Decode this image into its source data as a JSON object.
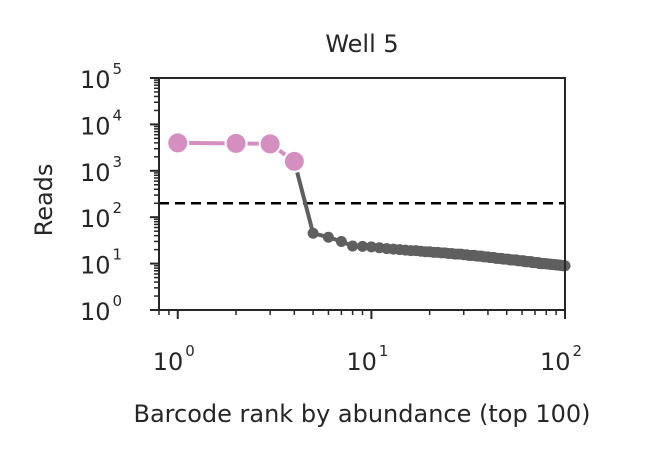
{
  "chart_data": {
    "type": "line",
    "title": "Well 5",
    "xlabel": "Barcode rank by abundance (top 100)",
    "ylabel": "Reads",
    "xscale": "log",
    "yscale": "log",
    "xlim": [
      0.8,
      100
    ],
    "ylim": [
      1,
      100000
    ],
    "x_ticks": [
      {
        "base": "10",
        "exp": "0",
        "value": 1
      },
      {
        "base": "10",
        "exp": "1",
        "value": 10
      },
      {
        "base": "10",
        "exp": "2",
        "value": 100
      }
    ],
    "y_ticks": [
      {
        "base": "10",
        "exp": "0",
        "value": 1
      },
      {
        "base": "10",
        "exp": "1",
        "value": 10
      },
      {
        "base": "10",
        "exp": "2",
        "value": 100
      },
      {
        "base": "10",
        "exp": "3",
        "value": 1000
      },
      {
        "base": "10",
        "exp": "4",
        "value": 10000
      },
      {
        "base": "10",
        "exp": "5",
        "value": 100000
      }
    ],
    "threshold": {
      "y": 200,
      "style": "dashed",
      "color": "#000000"
    },
    "grid": false,
    "series": [
      {
        "role": "selected",
        "color": "#d48fc0",
        "x": [
          1,
          2,
          3,
          4
        ],
        "y": [
          4000,
          3900,
          3800,
          1600
        ]
      },
      {
        "role": "background",
        "color": "#5f5f5f",
        "x": [
          5,
          6,
          7,
          8,
          9,
          10,
          11,
          12,
          13,
          14,
          15,
          16,
          17,
          18,
          19,
          20,
          21,
          22,
          23,
          24,
          25,
          26,
          27,
          28,
          29,
          30,
          31,
          32,
          33,
          34,
          35,
          36,
          37,
          38,
          39,
          40,
          41,
          42,
          43,
          44,
          45,
          46,
          47,
          48,
          49,
          50,
          51,
          52,
          53,
          54,
          55,
          56,
          57,
          58,
          59,
          60,
          61,
          62,
          63,
          64,
          65,
          66,
          67,
          68,
          69,
          70,
          71,
          72,
          73,
          74,
          75,
          76,
          77,
          78,
          79,
          80,
          81,
          82,
          83,
          84,
          85,
          86,
          87,
          88,
          89,
          90,
          91,
          92,
          93,
          94,
          95,
          96,
          97,
          98,
          99,
          100
        ],
        "y": [
          45,
          37,
          30,
          24,
          23.5,
          23,
          22,
          21,
          20.5,
          20,
          19.5,
          19,
          19,
          18.5,
          18,
          18,
          17.5,
          17.5,
          17,
          17,
          16.5,
          16.5,
          16,
          16,
          16,
          15.5,
          15.5,
          15,
          15,
          15,
          14.5,
          14.5,
          14.5,
          14,
          14,
          14,
          13.5,
          13.5,
          13.5,
          13,
          13,
          13,
          13,
          12.5,
          12.5,
          12.5,
          12.5,
          12,
          12,
          12,
          12,
          12,
          11.5,
          11.5,
          11.5,
          11.5,
          11.5,
          11,
          11,
          11,
          11,
          11,
          11,
          10.5,
          10.5,
          10.5,
          10.5,
          10.5,
          10.5,
          10,
          10,
          10,
          10,
          10,
          10,
          10,
          9.8,
          9.8,
          9.8,
          9.6,
          9.6,
          9.6,
          9.5,
          9.5,
          9.5,
          9.4,
          9.4,
          9.3,
          9.3,
          9.2,
          9.2,
          9.1,
          9.1,
          9.0,
          9.0,
          9.0
        ]
      }
    ]
  }
}
